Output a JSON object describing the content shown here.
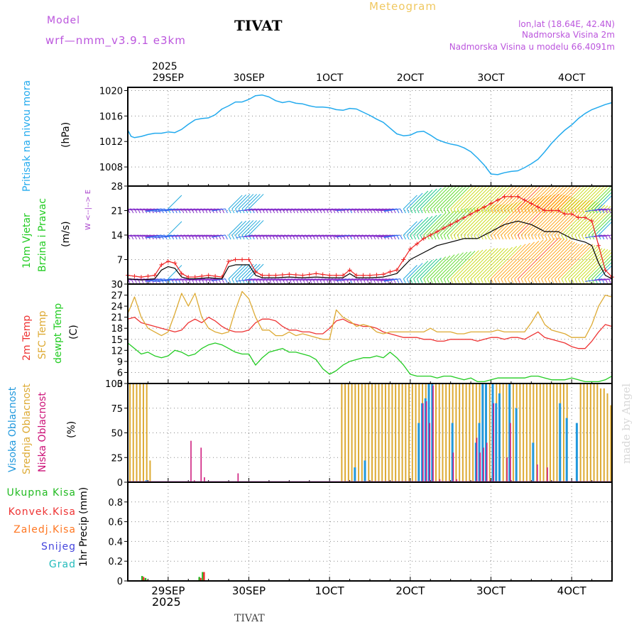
{
  "header": {
    "model_label": "Model",
    "model_name": "wrf—nmm_v3.9.1  e3km",
    "station": "TIVAT",
    "title": "Meteogram",
    "lonlat": "lon,lat (18.64E, 42.4N)",
    "altitude": "Nadmorska Visina 2m",
    "model_altitude": "Nadmorska Visina u modelu 66.4091m",
    "watermark": "made by Angel",
    "footer_station": "TIVAT"
  },
  "colors": {
    "pressure": "#22aaee",
    "temp2m": "#ee3333",
    "sfc_temp": "#ddaa33",
    "dewpoint": "#22cc22",
    "high_cloud": "#2299dd",
    "mid_cloud": "#ddaa33",
    "low_cloud": "#cc1177",
    "wind_gust": "#ee2222",
    "wind_mean": "#000000",
    "total_precip": "#22bb22",
    "conv_precip": "#ee3333",
    "freezing_rain": "#ff7722",
    "snow": "#4444dd",
    "graupel": "#22bbbb"
  },
  "time_axis": {
    "top_year": "2025",
    "bottom_year": "2025",
    "day_labels": [
      "29SEP",
      "30SEP",
      "1OCT",
      "2OCT",
      "3OCT",
      "4OCT"
    ],
    "day_hours": [
      12,
      36,
      60,
      84,
      108,
      132
    ],
    "range_hours": [
      0,
      144
    ]
  },
  "chart_data": [
    {
      "type": "line",
      "name": "pressure",
      "ylabel": "Pritisak na nivou mora",
      "unit": "(hPa)",
      "ylim": [
        1005,
        1020.5
      ],
      "yticks": [
        1008,
        1012,
        1016,
        1020
      ],
      "ytick_labels": [
        "1008",
        "1012",
        "1016",
        "1020"
      ],
      "x": [
        0,
        1,
        2,
        4,
        6,
        8,
        10,
        12,
        14,
        16,
        18,
        20,
        22,
        24,
        26,
        28,
        30,
        32,
        34,
        36,
        38,
        40,
        42,
        44,
        46,
        48,
        50,
        52,
        54,
        56,
        58,
        60,
        62,
        64,
        66,
        68,
        70,
        72,
        74,
        76,
        78,
        80,
        82,
        84,
        86,
        88,
        90,
        92,
        94,
        96,
        98,
        100,
        102,
        104,
        106,
        108,
        110,
        112,
        114,
        116,
        118,
        120,
        122,
        124,
        126,
        128,
        130,
        132,
        134,
        136,
        138,
        140,
        142,
        144
      ],
      "values": [
        1013.8,
        1012.8,
        1012.6,
        1012.8,
        1013.1,
        1013.3,
        1013.3,
        1013.5,
        1013.4,
        1013.9,
        1014.7,
        1015.4,
        1015.6,
        1015.7,
        1016.2,
        1017.1,
        1017.6,
        1018.2,
        1018.2,
        1018.6,
        1019.2,
        1019.3,
        1019.0,
        1018.4,
        1018.1,
        1018.3,
        1018.0,
        1017.9,
        1017.6,
        1017.4,
        1017.4,
        1017.3,
        1017.0,
        1016.9,
        1017.2,
        1017.1,
        1016.6,
        1016.1,
        1015.5,
        1015.0,
        1014.1,
        1013.2,
        1012.9,
        1013.0,
        1013.5,
        1013.6,
        1013.0,
        1012.3,
        1011.9,
        1011.6,
        1011.4,
        1011.0,
        1010.4,
        1009.4,
        1008.3,
        1006.9,
        1006.8,
        1007.1,
        1007.3,
        1007.4,
        1007.9,
        1008.5,
        1009.2,
        1010.4,
        1011.7,
        1012.8,
        1013.8,
        1014.6,
        1015.6,
        1016.4,
        1017.0,
        1017.4,
        1017.8,
        1018.1
      ]
    },
    {
      "type": "line",
      "name": "wind",
      "ylabel1": "10m Vjetar",
      "ylabel2": "Brzina i Pravac",
      "unit": "(m/s)",
      "compass": "W <--|--> E",
      "ylim": [
        0,
        28
      ],
      "yticks": [
        0,
        7,
        14,
        21,
        28
      ],
      "ytick_labels": [
        "0",
        "7",
        "14",
        "21",
        "28"
      ],
      "x": [
        0,
        4,
        8,
        10,
        12,
        14,
        16,
        18,
        20,
        24,
        28,
        30,
        32,
        34,
        36,
        38,
        40,
        44,
        48,
        52,
        56,
        60,
        64,
        66,
        68,
        72,
        76,
        78,
        80,
        84,
        88,
        92,
        96,
        100,
        104,
        108,
        112,
        116,
        120,
        124,
        128,
        130,
        132,
        134,
        136,
        138,
        140,
        142,
        144
      ],
      "series": [
        {
          "name": "gust",
          "values": [
            2.5,
            2.0,
            2.5,
            5.5,
            6.5,
            6.0,
            3.0,
            2.0,
            2.0,
            2.5,
            2.0,
            6.5,
            7.0,
            7.0,
            7.0,
            3.5,
            2.5,
            2.5,
            2.8,
            2.5,
            3.0,
            2.5,
            2.5,
            4.0,
            2.5,
            2.5,
            2.8,
            3.5,
            4.0,
            10,
            13,
            15,
            17,
            19,
            21,
            23,
            25,
            25,
            23,
            21,
            21,
            20,
            20,
            19,
            19,
            18,
            11,
            4,
            2
          ]
        },
        {
          "name": "mean",
          "values": [
            1.5,
            1.2,
            1.5,
            4.0,
            5.0,
            4.5,
            2.0,
            1.5,
            1.5,
            1.8,
            1.5,
            5.0,
            5.5,
            5.5,
            5.5,
            2.5,
            1.8,
            1.8,
            2.0,
            1.8,
            2.0,
            1.8,
            1.8,
            3.0,
            1.8,
            1.8,
            2.0,
            2.5,
            3.0,
            7,
            9,
            11,
            12,
            13,
            13,
            15,
            17,
            18,
            17,
            15,
            15,
            14,
            13,
            12.5,
            12,
            11,
            6,
            2.5,
            1.5
          ]
        }
      ]
    },
    {
      "type": "line",
      "name": "temperature",
      "ylabel1": "2m Temp",
      "ylabel2": "SFC Temp",
      "ylabel3": "dewpt Temp",
      "unit": "(C)",
      "ylim": [
        3,
        30
      ],
      "yticks": [
        3,
        6,
        9,
        12,
        15,
        18,
        21,
        24,
        27,
        30
      ],
      "ytick_labels": [
        "3",
        "6",
        "9",
        "12",
        "15",
        "18",
        "21",
        "24",
        "27",
        "30"
      ],
      "x": [
        0,
        2,
        4,
        6,
        8,
        10,
        12,
        14,
        16,
        18,
        20,
        22,
        24,
        26,
        28,
        30,
        32,
        34,
        36,
        38,
        40,
        42,
        44,
        46,
        48,
        50,
        52,
        54,
        56,
        58,
        60,
        62,
        64,
        66,
        68,
        70,
        72,
        74,
        76,
        78,
        80,
        82,
        84,
        86,
        88,
        90,
        92,
        94,
        96,
        98,
        100,
        102,
        104,
        106,
        108,
        110,
        112,
        114,
        116,
        118,
        120,
        122,
        124,
        126,
        128,
        130,
        132,
        134,
        136,
        138,
        140,
        142,
        144
      ],
      "series": [
        {
          "name": "2m Temp",
          "values": [
            20.5,
            21.0,
            19.5,
            19.0,
            18.5,
            18.0,
            17.5,
            17.0,
            17.5,
            19.5,
            20.5,
            19.5,
            21.0,
            20.0,
            18.5,
            17.5,
            17.0,
            17.0,
            17.5,
            19.5,
            20.5,
            20.5,
            20.0,
            18.5,
            17.5,
            17.5,
            17.0,
            17.0,
            16.5,
            16.5,
            18.0,
            20.0,
            20.5,
            19.5,
            19.0,
            18.5,
            18.5,
            18.0,
            17.0,
            16.5,
            16.0,
            15.5,
            15.5,
            15.5,
            15.0,
            15.0,
            14.5,
            14.5,
            15.0,
            15.0,
            15.0,
            15.0,
            14.5,
            15.0,
            15.5,
            15.5,
            15.0,
            15.5,
            15.5,
            15.0,
            16.0,
            17.0,
            15.5,
            15.0,
            14.5,
            14.0,
            13.0,
            12.5,
            12.5,
            14.5,
            17.0,
            19.0,
            18.5
          ]
        },
        {
          "name": "SFC Temp",
          "values": [
            22.0,
            26.5,
            21.0,
            18.0,
            17.0,
            16.0,
            17.0,
            22.0,
            27.5,
            24.0,
            27.5,
            21.0,
            18.0,
            17.0,
            16.5,
            17.0,
            23.0,
            28.0,
            26.0,
            21.0,
            17.5,
            17.5,
            16.0,
            16.0,
            17.0,
            16.0,
            16.5,
            16.0,
            15.5,
            15.0,
            15.0,
            23.0,
            21.0,
            20.0,
            18.5,
            19.0,
            18.5,
            17.0,
            16.5,
            17.0,
            17.0,
            17.0,
            17.0,
            17.0,
            17.0,
            18.0,
            17.0,
            17.0,
            17.0,
            16.5,
            16.5,
            17.0,
            17.0,
            17.0,
            17.0,
            17.5,
            17.0,
            17.0,
            17.0,
            17.0,
            19.5,
            22.5,
            19.0,
            17.5,
            17.0,
            16.5,
            15.5,
            15.5,
            15.5,
            19.0,
            24.0,
            27.0,
            26.5
          ]
        },
        {
          "name": "dewpt Temp",
          "values": [
            14.0,
            12.5,
            11.0,
            11.5,
            10.5,
            10.0,
            10.5,
            12.0,
            11.5,
            10.5,
            11.0,
            12.5,
            13.5,
            14.0,
            13.5,
            12.5,
            11.5,
            11.0,
            11.0,
            8.0,
            10.0,
            11.5,
            12.0,
            12.5,
            11.5,
            11.5,
            11.0,
            10.5,
            9.5,
            7.0,
            5.5,
            6.5,
            8.0,
            9.0,
            9.5,
            10.0,
            10.0,
            10.5,
            10.0,
            11.5,
            10.0,
            8.0,
            5.5,
            5.0,
            5.0,
            5.0,
            4.5,
            5.0,
            5.0,
            4.5,
            4.0,
            4.5,
            3.5,
            3.5,
            4.0,
            4.5,
            4.5,
            4.5,
            4.5,
            4.5,
            5.0,
            5.0,
            4.5,
            4.0,
            4.0,
            4.0,
            4.5,
            4.0,
            3.5,
            3.5,
            3.5,
            4.0,
            5.0
          ]
        }
      ]
    },
    {
      "type": "bar",
      "name": "clouds",
      "ylabel1": "Visoka Oblacnost",
      "ylabel2": "Srednja Oblacnost",
      "ylabel3": "Niska Oblacnost",
      "unit": "(%)",
      "ylim": [
        0,
        100
      ],
      "yticks": [
        0,
        25,
        50,
        75,
        100
      ],
      "ytick_labels": [
        "0",
        "25",
        "50",
        "75",
        "100"
      ],
      "series": [
        {
          "name": "high",
          "x": [
            5,
            67,
            70,
            86,
            87,
            88,
            89,
            90,
            96,
            103,
            104,
            105,
            106,
            108,
            109,
            110,
            113,
            115,
            120,
            128,
            130,
            133
          ],
          "values": [
            2,
            15,
            22,
            60,
            80,
            85,
            100,
            100,
            60,
            40,
            60,
            100,
            100,
            100,
            80,
            90,
            100,
            75,
            40,
            80,
            65,
            60
          ]
        },
        {
          "name": "mid",
          "x": [
            0,
            1,
            2,
            3,
            4,
            5,
            6,
            63,
            64,
            65,
            66,
            67,
            68,
            69,
            70,
            71,
            72,
            73,
            74,
            75,
            76,
            77,
            78,
            79,
            80,
            81,
            82,
            83,
            84,
            85,
            86,
            87,
            88,
            89,
            90,
            91,
            92,
            93,
            94,
            95,
            96,
            97,
            98,
            99,
            100,
            101,
            102,
            103,
            104,
            105,
            106,
            107,
            108,
            109,
            110,
            111,
            112,
            113,
            114,
            115,
            116,
            117,
            118,
            119,
            120,
            121,
            122,
            123,
            124,
            125,
            126,
            127,
            128,
            129,
            130,
            134,
            135,
            136,
            137,
            138,
            139,
            140,
            141,
            142,
            143
          ],
          "values": [
            100,
            100,
            100,
            100,
            100,
            100,
            22,
            100,
            100,
            100,
            100,
            100,
            100,
            100,
            100,
            100,
            100,
            100,
            100,
            100,
            100,
            100,
            100,
            100,
            100,
            100,
            100,
            100,
            100,
            100,
            100,
            100,
            100,
            100,
            100,
            100,
            100,
            100,
            100,
            100,
            100,
            100,
            100,
            100,
            100,
            100,
            100,
            100,
            100,
            100,
            100,
            100,
            100,
            100,
            100,
            100,
            100,
            100,
            100,
            100,
            100,
            100,
            100,
            100,
            100,
            100,
            100,
            100,
            100,
            100,
            100,
            100,
            100,
            100,
            100,
            100,
            100,
            100,
            100,
            100,
            100,
            95,
            95,
            90,
            78
          ]
        },
        {
          "name": "low",
          "x": [
            18,
            19,
            21,
            22,
            32,
            87,
            88,
            89,
            90,
            92,
            96,
            97,
            103,
            104,
            105,
            106,
            107,
            108,
            112,
            113,
            121,
            124
          ],
          "values": [
            42,
            2,
            35,
            5,
            9,
            80,
            82,
            60,
            98,
            3,
            30,
            3,
            45,
            30,
            35,
            40,
            2,
            80,
            25,
            60,
            18,
            15
          ]
        }
      ]
    },
    {
      "type": "bar",
      "name": "precipitation",
      "ylabel": "1hr Precip",
      "unit": "(mm)",
      "ylim": [
        0,
        1
      ],
      "yticks": [
        0,
        0.2,
        0.4,
        0.6,
        0.8
      ],
      "ytick_labels": [
        "0",
        "0.2",
        "0.4",
        "0.6",
        "0.8"
      ],
      "legend": [
        "Ukupna Kisa",
        "Konvek.Kisa",
        "Zaledj.Kisa",
        "Snijeg",
        "Grad"
      ],
      "series": [
        {
          "name": "total",
          "x": [
            4,
            5,
            21,
            22
          ],
          "values": [
            0.05,
            0.03,
            0.04,
            0.09
          ]
        },
        {
          "name": "conv",
          "x": [
            4.4,
            5.4,
            21.4,
            22.4
          ],
          "values": [
            0.04,
            0.01,
            0.03,
            0.09
          ]
        }
      ]
    }
  ]
}
